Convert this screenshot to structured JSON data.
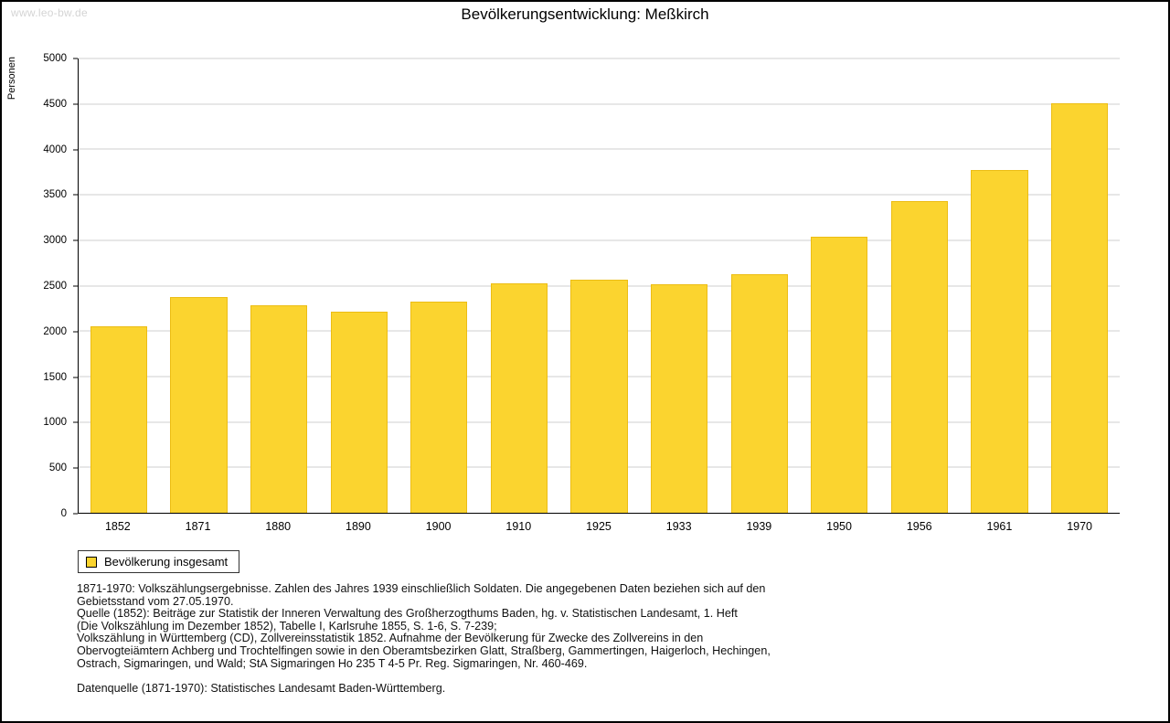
{
  "watermark": "www.leo-bw.de",
  "title": "Bevölkerungsentwicklung: Meßkirch",
  "chart_data": {
    "type": "bar",
    "title": "Bevölkerungsentwicklung: Meßkirch",
    "categories": [
      "1852",
      "1871",
      "1880",
      "1890",
      "1900",
      "1910",
      "1925",
      "1933",
      "1939",
      "1950",
      "1956",
      "1961",
      "1970"
    ],
    "values": [
      2050,
      2370,
      2280,
      2210,
      2320,
      2530,
      2570,
      2520,
      2630,
      3040,
      3430,
      3770,
      4510
    ],
    "xlabel": "",
    "ylabel": "Personen",
    "ylim": [
      0,
      5000
    ],
    "ytick_interval": 500,
    "grid": true,
    "bar_color": "#FBD42F",
    "legend_position": "bottom-left",
    "legend_entries": [
      "Bevölkerung insgesamt"
    ]
  },
  "legend": {
    "label": "Bevölkerung insgesamt",
    "swatch_color": "#FBD42F"
  },
  "footnotes": {
    "lines": [
      "1871-1970: Volkszählungsergebnisse. Zahlen des Jahres 1939 einschließlich Soldaten. Die angegebenen Daten beziehen sich auf den",
      "Gebietsstand vom 27.05.1970.",
      "Quelle (1852): Beiträge zur Statistik der Inneren Verwaltung des Großherzogthums Baden, hg. v. Statistischen Landesamt, 1. Heft",
      "(Die Volkszählung im Dezember 1852), Tabelle I, Karlsruhe 1855, S. 1-6, S. 7-239;",
      "Volkszählung in Württemberg (CD), Zollvereinsstatistik 1852. Aufnahme der Bevölkerung für Zwecke des Zollvereins in den",
      "Obervogteiämtern Achberg und Trochtelfingen sowie in den Oberamtsbezirken Glatt, Straßberg, Gammertingen, Haigerloch, Hechingen,",
      "Ostrach, Sigmaringen, und Wald; StA Sigmaringen Ho 235 T 4-5 Pr. Reg. Sigmaringen, Nr. 460-469.",
      "",
      "Datenquelle (1871-1970): Statistisches Landesamt Baden-Württemberg."
    ]
  }
}
